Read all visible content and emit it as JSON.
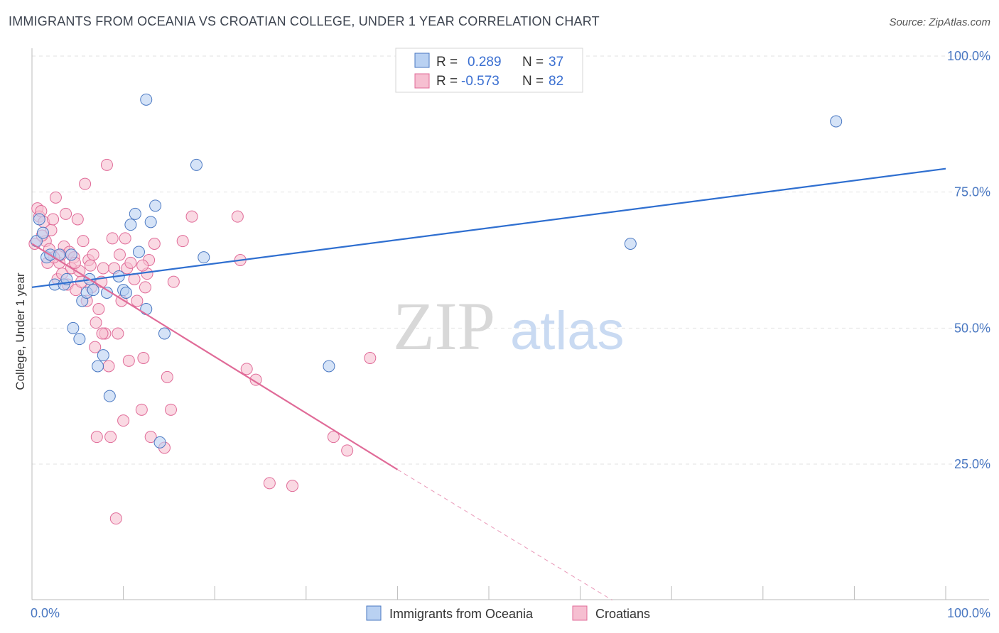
{
  "title": "IMMIGRANTS FROM OCEANIA VS CROATIAN COLLEGE, UNDER 1 YEAR CORRELATION CHART",
  "source": "Source: ZipAtlas.com",
  "watermark": {
    "zip": "ZIP",
    "atlas": "atlas"
  },
  "colors": {
    "blue": "#4a78c2",
    "blue_fill": "#b9d1f2",
    "blue_line": "#2f6fd0",
    "pink": "#e06b98",
    "pink_fill": "#f6bfd1",
    "pink_line": "#e06b98"
  },
  "chart_data": {
    "type": "scatter",
    "xlabel": "",
    "ylabel": "College, Under 1 year",
    "xlim": [
      0,
      100
    ],
    "ylim": [
      0,
      100
    ],
    "x_tick_labels": {
      "left": "0.0%",
      "right": "100.0%"
    },
    "y_ticks": [
      {
        "value": 100,
        "label": "100.0%"
      },
      {
        "value": 75,
        "label": "75.0%"
      },
      {
        "value": 50,
        "label": "50.0%"
      },
      {
        "value": 25,
        "label": "25.0%"
      }
    ],
    "legend": {
      "rows": [
        {
          "r_label": "R =",
          "r_value": "0.289",
          "n_label": "N =",
          "n_value": "37"
        },
        {
          "r_label": "R =",
          "r_value": "-0.573",
          "n_label": "N =",
          "n_value": "82"
        }
      ]
    },
    "series": [
      {
        "name": "Immigrants from Oceania",
        "trend": {
          "x0": 0,
          "y0": 57.5,
          "x1": 100,
          "y1": 79.3
        },
        "points": [
          [
            0.5,
            66
          ],
          [
            0.8,
            70
          ],
          [
            1.2,
            67.5
          ],
          [
            1.6,
            63
          ],
          [
            2.0,
            63.5
          ],
          [
            2.5,
            58
          ],
          [
            3.0,
            63.5
          ],
          [
            3.5,
            58
          ],
          [
            3.8,
            59
          ],
          [
            4.3,
            63.5
          ],
          [
            4.5,
            50
          ],
          [
            5.2,
            48
          ],
          [
            5.5,
            55
          ],
          [
            6.0,
            56.5
          ],
          [
            6.3,
            59
          ],
          [
            6.7,
            57
          ],
          [
            7.2,
            43
          ],
          [
            7.8,
            45
          ],
          [
            8.2,
            56.5
          ],
          [
            8.5,
            37.5
          ],
          [
            9.5,
            59.5
          ],
          [
            10.0,
            57
          ],
          [
            10.3,
            56.5
          ],
          [
            10.8,
            69
          ],
          [
            11.3,
            71
          ],
          [
            11.7,
            64
          ],
          [
            12.5,
            53.5
          ],
          [
            12.5,
            92
          ],
          [
            13.0,
            69.5
          ],
          [
            13.5,
            72.5
          ],
          [
            14.0,
            29
          ],
          [
            14.5,
            49
          ],
          [
            18.0,
            80
          ],
          [
            18.8,
            63
          ],
          [
            32.5,
            43
          ],
          [
            65.5,
            65.5
          ],
          [
            88.0,
            88
          ]
        ]
      },
      {
        "name": "Croatians",
        "trend": {
          "x0": 0,
          "y0": 65.5,
          "x1": 40,
          "y1": 24,
          "x_dash_end": 63.5,
          "y_dash_end": 0
        },
        "points": [
          [
            0.3,
            65.5
          ],
          [
            0.6,
            72
          ],
          [
            0.8,
            70.5
          ],
          [
            1.0,
            71.5
          ],
          [
            1.3,
            69.5
          ],
          [
            1.5,
            66
          ],
          [
            1.7,
            62
          ],
          [
            1.9,
            64.5
          ],
          [
            2.1,
            68
          ],
          [
            2.3,
            70
          ],
          [
            2.6,
            74
          ],
          [
            2.8,
            59
          ],
          [
            3.0,
            62
          ],
          [
            3.2,
            63.5
          ],
          [
            3.5,
            65
          ],
          [
            3.7,
            71
          ],
          [
            3.9,
            58
          ],
          [
            4.1,
            64
          ],
          [
            4.3,
            61
          ],
          [
            4.6,
            63
          ],
          [
            4.8,
            57
          ],
          [
            5.0,
            70
          ],
          [
            5.2,
            60.5
          ],
          [
            5.4,
            58.5
          ],
          [
            5.6,
            66
          ],
          [
            5.8,
            76.5
          ],
          [
            6.0,
            55
          ],
          [
            6.2,
            62.5
          ],
          [
            6.5,
            57.5
          ],
          [
            6.7,
            63.5
          ],
          [
            6.9,
            46.5
          ],
          [
            7.0,
            51
          ],
          [
            7.1,
            30
          ],
          [
            7.3,
            53.5
          ],
          [
            7.6,
            58.5
          ],
          [
            7.8,
            61
          ],
          [
            8.0,
            49
          ],
          [
            8.2,
            80
          ],
          [
            8.4,
            43
          ],
          [
            8.6,
            30
          ],
          [
            8.8,
            66.5
          ],
          [
            9.0,
            61
          ],
          [
            9.2,
            15
          ],
          [
            9.4,
            49
          ],
          [
            9.6,
            63.5
          ],
          [
            9.8,
            55
          ],
          [
            10.0,
            33
          ],
          [
            10.2,
            66.5
          ],
          [
            10.4,
            61
          ],
          [
            10.6,
            44
          ],
          [
            10.8,
            62
          ],
          [
            11.5,
            55
          ],
          [
            12.0,
            35
          ],
          [
            12.2,
            44.5
          ],
          [
            12.4,
            57.5
          ],
          [
            12.6,
            60
          ],
          [
            12.8,
            62.5
          ],
          [
            13.0,
            30
          ],
          [
            13.4,
            65.5
          ],
          [
            14.5,
            28
          ],
          [
            14.8,
            41
          ],
          [
            15.2,
            35
          ],
          [
            16.5,
            66
          ],
          [
            17.5,
            70.5
          ],
          [
            22.5,
            70.5
          ],
          [
            22.8,
            62.5
          ],
          [
            23.5,
            42.5
          ],
          [
            24.5,
            40.5
          ],
          [
            26.0,
            21.5
          ],
          [
            28.5,
            21
          ],
          [
            33.0,
            30
          ],
          [
            34.5,
            27.5
          ],
          [
            37.0,
            44.5
          ],
          [
            1.1,
            67
          ],
          [
            2.4,
            63
          ],
          [
            3.3,
            60
          ],
          [
            4.7,
            62
          ],
          [
            6.4,
            61.5
          ],
          [
            7.7,
            49
          ],
          [
            11.2,
            59
          ],
          [
            12.1,
            61.5
          ],
          [
            15.5,
            58.5
          ]
        ]
      }
    ]
  },
  "bottom_legend": [
    {
      "label": "Immigrants from Oceania"
    },
    {
      "label": "Croatians"
    }
  ]
}
